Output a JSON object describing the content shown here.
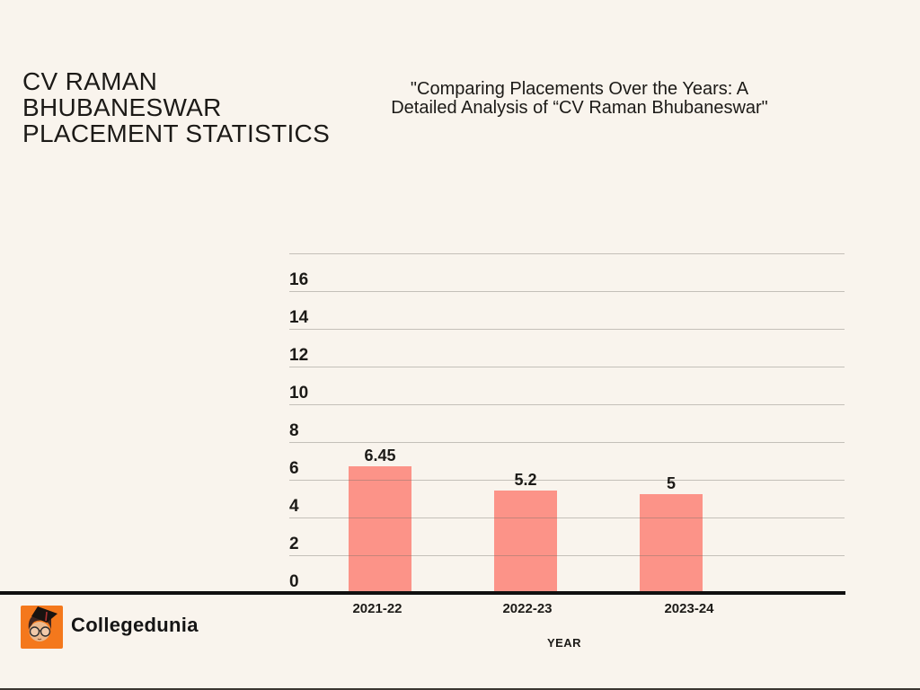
{
  "page": {
    "title": "CV RAMAN\nBHUBANESWAR\nPLACEMENT STATISTICS",
    "subtitle": "\"Comparing Placements Over the Years: A\nDetailed Analysis of “CV Raman Bhubaneswar\"",
    "footer_brand": "Collegedunia"
  },
  "colors": {
    "background": "#F9F4ED",
    "bar": "#FC9388",
    "text": "#1C1A17",
    "gridline": "#C8C7C3",
    "axis": "#101010",
    "brand_orange": "#F4781C"
  },
  "chart_data": {
    "type": "bar",
    "title": "",
    "categories": [
      "2021-22",
      "2022-23",
      "2023-24"
    ],
    "values": [
      6.45,
      5.2,
      5
    ],
    "value_labels": [
      "6.45",
      "5.2",
      "5"
    ],
    "xlabel": "YEAR",
    "ylabel": "",
    "ylim": [
      0,
      18
    ],
    "ytick_step": 2,
    "ytick_labels": [
      "0",
      "2",
      "4",
      "6",
      "8",
      "10",
      "12",
      "14",
      "16"
    ],
    "grid": true,
    "legend": false
  }
}
